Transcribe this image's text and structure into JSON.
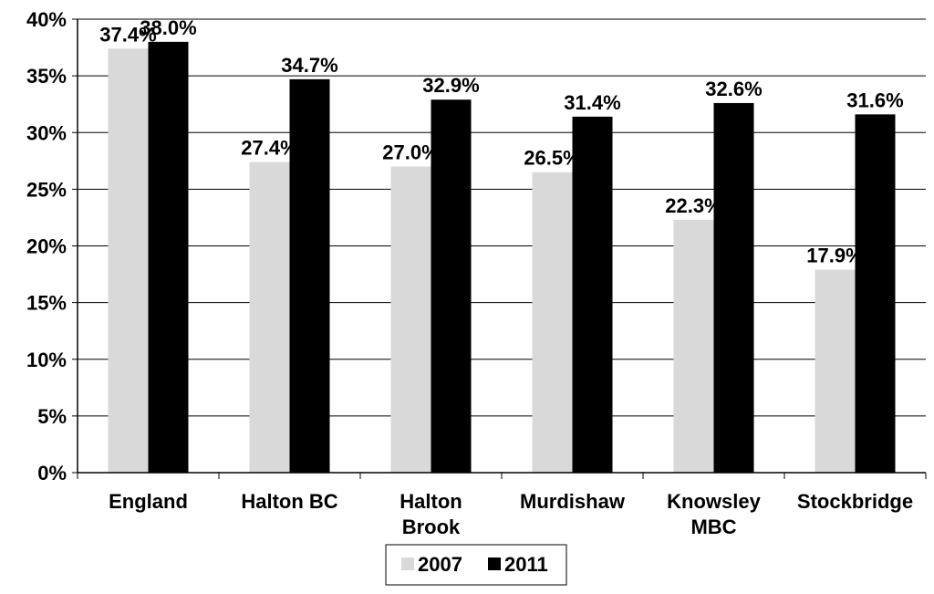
{
  "chart_data": {
    "type": "bar",
    "title": "",
    "xlabel": "",
    "ylabel": "",
    "categories": [
      [
        "England"
      ],
      [
        "Halton BC"
      ],
      [
        "Halton",
        "Brook"
      ],
      [
        "Murdishaw"
      ],
      [
        "Knowsley",
        "MBC"
      ],
      [
        "Stockbridge"
      ]
    ],
    "series": [
      {
        "name": "2007",
        "color": "#d9d9d9",
        "values": [
          37.4,
          27.4,
          27.0,
          26.5,
          22.3,
          17.9
        ],
        "labels": [
          "37.4%",
          "27.4%",
          "27.0%",
          "26.5%",
          "22.3%",
          "17.9%"
        ]
      },
      {
        "name": "2011",
        "color": "#000000",
        "values": [
          38.0,
          34.7,
          32.9,
          31.4,
          32.6,
          31.6
        ],
        "labels": [
          "38.0%",
          "34.7%",
          "32.9%",
          "31.4%",
          "32.6%",
          "31.6%"
        ]
      }
    ],
    "ylim": [
      0,
      40
    ],
    "y_ticks": [
      0,
      5,
      10,
      15,
      20,
      25,
      30,
      35,
      40
    ],
    "y_tick_labels": [
      "0%",
      "5%",
      "10%",
      "15%",
      "20%",
      "25%",
      "30%",
      "35%",
      "40%"
    ],
    "grid": true,
    "legend_position": "bottom-center"
  }
}
